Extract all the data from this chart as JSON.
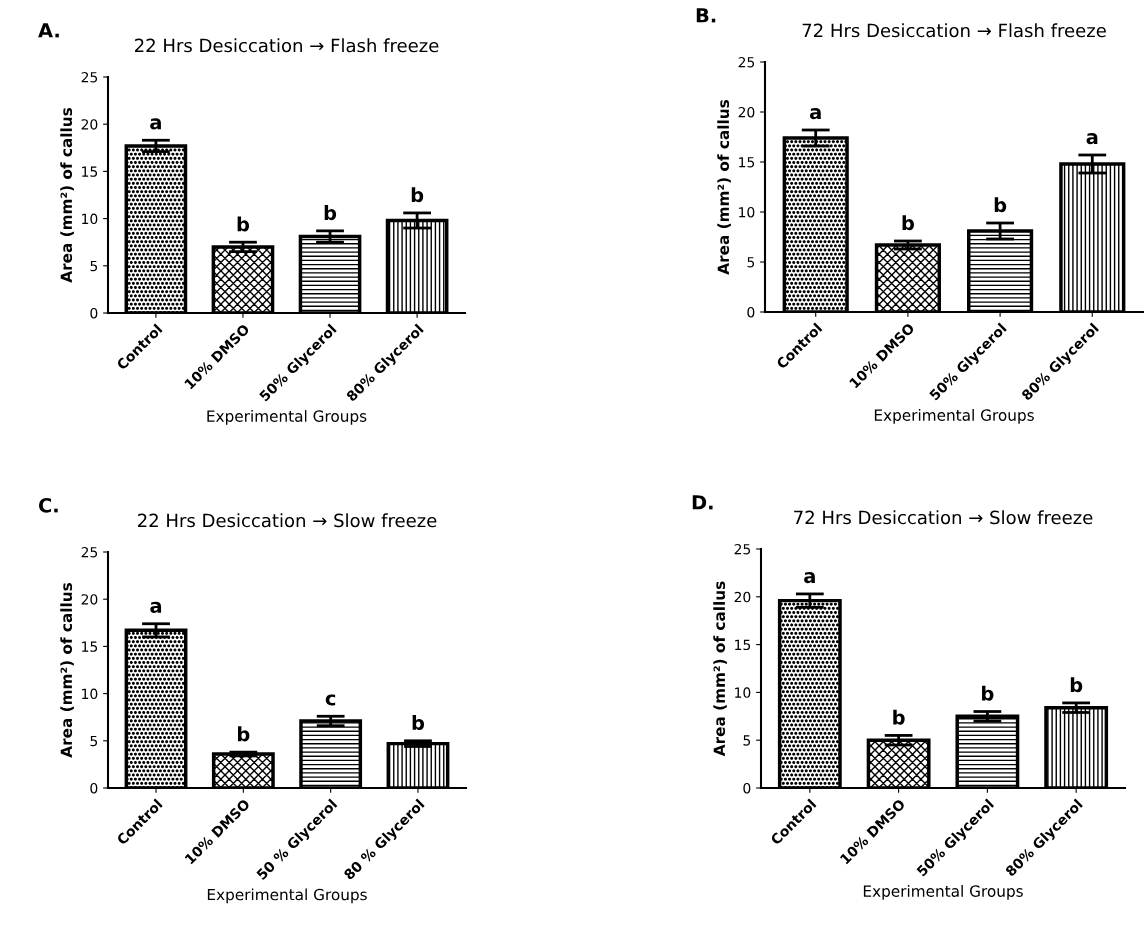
{
  "chart_data": [
    {
      "type": "bar",
      "title": "22 Hrs Desiccation → Flash freeze",
      "xlabel": "Experimental Groups",
      "ylabel": "Area (mm²) of callus",
      "categories": [
        "Control",
        "10% DMSO",
        "50% Glycerol",
        "80% Glycerol"
      ],
      "values": [
        17.7,
        7.0,
        8.1,
        9.8
      ],
      "errors": [
        0.6,
        0.5,
        0.6,
        0.8
      ],
      "color": "#000000",
      "ylim": [
        0,
        25
      ],
      "yticks": [
        0,
        5,
        10,
        15,
        20,
        25
      ],
      "grid": false,
      "legend": false,
      "annotations": [
        "A.",
        {
          "text": "a",
          "x": "Control",
          "y": 18.3
        },
        {
          "text": "b",
          "x": "10% DMSO",
          "y": 7.5
        },
        {
          "text": "b",
          "x": "50% Glycerol",
          "y": 8.7
        },
        {
          "text": "b",
          "x": "80% Glycerol",
          "y": 10.6
        }
      ]
    },
    {
      "type": "bar",
      "title": "72 Hrs Desiccation → Flash freeze",
      "xlabel": "Experimental Groups",
      "ylabel": "Area (mm²) of callus",
      "categories": [
        "Control",
        "10% DMSO",
        "50% Glycerol",
        "80% Glycerol"
      ],
      "values": [
        17.4,
        6.7,
        8.1,
        14.8
      ],
      "errors": [
        0.8,
        0.4,
        0.8,
        0.9
      ],
      "color": "#000000",
      "ylim": [
        0,
        25
      ],
      "yticks": [
        0,
        5,
        10,
        15,
        20,
        25
      ],
      "grid": false,
      "legend": false,
      "annotations": [
        "B.",
        {
          "text": "a",
          "x": "Control",
          "y": 18.2
        },
        {
          "text": "b",
          "x": "10% DMSO",
          "y": 7.1
        },
        {
          "text": "b",
          "x": "50% Glycerol",
          "y": 8.9
        },
        {
          "text": "a",
          "x": "80% Glycerol",
          "y": 15.7
        }
      ]
    },
    {
      "type": "bar",
      "title": "22 Hrs Desiccation → Slow freeze",
      "xlabel": "Experimental Groups",
      "ylabel": "Area (mm²) of callus",
      "categories": [
        "Control",
        "10% DMSO",
        "50 % Glycerol",
        "80 % Glycerol"
      ],
      "values": [
        16.7,
        3.6,
        7.1,
        4.7
      ],
      "errors": [
        0.7,
        0.2,
        0.5,
        0.3
      ],
      "color": "#000000",
      "ylim": [
        0,
        25
      ],
      "yticks": [
        0,
        5,
        10,
        15,
        20,
        25
      ],
      "grid": false,
      "legend": false,
      "annotations": [
        "C.",
        {
          "text": "a",
          "x": "Control",
          "y": 17.4
        },
        {
          "text": "b",
          "x": "10% DMSO",
          "y": 3.8
        },
        {
          "text": "c",
          "x": "50 % Glycerol",
          "y": 7.6
        },
        {
          "text": "b",
          "x": "80 % Glycerol",
          "y": 5.0
        }
      ]
    },
    {
      "type": "bar",
      "title": "72 Hrs Desiccation → Slow freeze",
      "xlabel": "Experimental Groups",
      "ylabel": "Area (mm²) of callus",
      "categories": [
        "Control",
        "10% DMSO",
        "50% Glycerol",
        "80% Glycerol"
      ],
      "values": [
        19.6,
        5.0,
        7.5,
        8.4
      ],
      "errors": [
        0.7,
        0.5,
        0.5,
        0.5
      ],
      "color": "#000000",
      "ylim": [
        0,
        25
      ],
      "yticks": [
        0,
        5,
        10,
        15,
        20,
        25
      ],
      "grid": false,
      "legend": false,
      "annotations": [
        "D.",
        {
          "text": "a",
          "x": "Control",
          "y": 20.3
        },
        {
          "text": "b",
          "x": "10% DMSO",
          "y": 5.5
        },
        {
          "text": "b",
          "x": "50% Glycerol",
          "y": 8.0
        },
        {
          "text": "b",
          "x": "80% Glycerol",
          "y": 8.9
        }
      ]
    }
  ]
}
